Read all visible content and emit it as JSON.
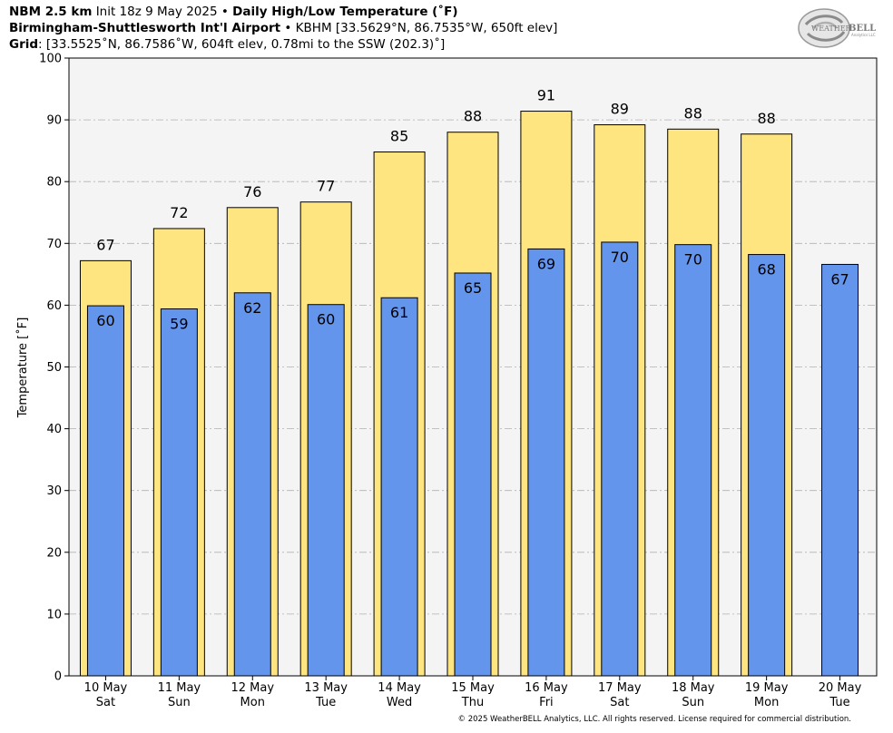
{
  "header": {
    "line1": {
      "model": "NBM 2.5 km",
      "init": "Init 18z 9 May 2025",
      "bullet": "•",
      "product": "Daily High/Low Temperature (˚F)"
    },
    "line2": {
      "station": "Birmingham-Shuttlesworth Int'l Airport",
      "bullet": "•",
      "details": "KBHM [33.5629°N, 86.7535°W, 650ft elev]"
    },
    "line3": {
      "label": "Grid",
      "details": ": [33.5525˚N, 86.7586˚W, 604ft elev, 0.78mi to the SSW (202.3)˚]"
    }
  },
  "logo": {
    "text_weather": "WEATHER",
    "text_bell": "BELL",
    "text_sub": "Analytics LLC"
  },
  "copyright": "© 2025 WeatherBELL Analytics, LLC. All rights reserved. License required for commercial distribution.",
  "colors": {
    "high_bar": "#ffe57f",
    "low_bar": "#6495ed",
    "plot_bg": "#f4f4f4",
    "grid": "#b0b0b0"
  },
  "chart_data": {
    "type": "bar",
    "title": "Daily High/Low Temperature (˚F)",
    "ylabel": "Temperature [˚F]",
    "xlabel": "",
    "ylim": [
      0,
      100
    ],
    "yticks": [
      0,
      10,
      20,
      30,
      40,
      50,
      60,
      70,
      80,
      90,
      100
    ],
    "grid": true,
    "categories": [
      {
        "date": "10 May",
        "dow": "Sat"
      },
      {
        "date": "11 May",
        "dow": "Sun"
      },
      {
        "date": "12 May",
        "dow": "Mon"
      },
      {
        "date": "13 May",
        "dow": "Tue"
      },
      {
        "date": "14 May",
        "dow": "Wed"
      },
      {
        "date": "15 May",
        "dow": "Thu"
      },
      {
        "date": "16 May",
        "dow": "Fri"
      },
      {
        "date": "17 May",
        "dow": "Sat"
      },
      {
        "date": "18 May",
        "dow": "Sun"
      },
      {
        "date": "19 May",
        "dow": "Mon"
      },
      {
        "date": "20 May",
        "dow": "Tue"
      }
    ],
    "series": [
      {
        "values": [
          67.2,
          72.4,
          75.8,
          76.7,
          84.8,
          88.0,
          91.4,
          89.2,
          88.5,
          87.7,
          null
        ],
        "labels": [
          "67",
          "72",
          "76",
          "77",
          "85",
          "88",
          "91",
          "89",
          "88",
          "88",
          ""
        ]
      },
      {
        "values": [
          59.9,
          59.4,
          62.0,
          60.1,
          61.2,
          65.2,
          69.1,
          70.2,
          69.8,
          68.2,
          66.6
        ],
        "labels": [
          "60",
          "59",
          "62",
          "60",
          "61",
          "65",
          "69",
          "70",
          "70",
          "68",
          "67"
        ]
      }
    ]
  }
}
